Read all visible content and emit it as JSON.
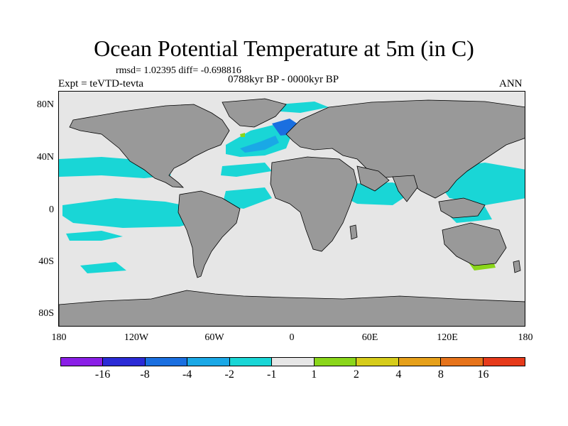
{
  "title": "Ocean Potential Temperature at 5m (in C)",
  "stats_line": "rmsd= 1.02395 diff= -0.698816",
  "expt_line": "Expt = teVTD-tevta",
  "period_line": "0788kyr BP - 0000kyr BP",
  "season": "ANN",
  "lat_ticks": [
    "80N",
    "40N",
    "0",
    "40S",
    "80S"
  ],
  "lon_ticks": [
    "180",
    "120W",
    "60W",
    "0",
    "60E",
    "120E",
    "180"
  ],
  "colorbar": {
    "colors": [
      "#8a1fe6",
      "#2b2bd6",
      "#1a6fe0",
      "#1aa8e6",
      "#19d6d6",
      "#e6e6e6",
      "#8ad61a",
      "#d6cc1a",
      "#e6a01a",
      "#e6731a",
      "#e63a1a"
    ],
    "labels": [
      "-16",
      "-8",
      "-4",
      "-2",
      "-1",
      "1",
      "2",
      "4",
      "8",
      "16"
    ]
  },
  "colors": {
    "land": "#999999",
    "ocean_neutral": "#e6e6e6",
    "cool_light": "#19d6d6",
    "cool_mid": "#1aa8e6",
    "cool_deep": "#1a6fe0",
    "warm_light": "#8ad61a"
  }
}
